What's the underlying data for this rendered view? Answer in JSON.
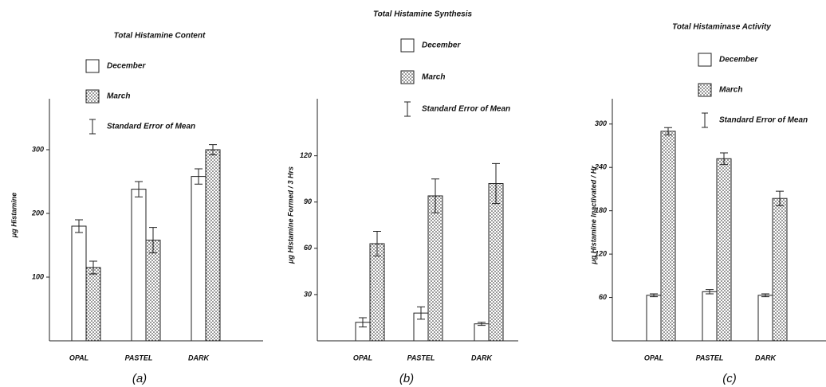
{
  "chart_data": [
    {
      "type": "bar",
      "title": "Total Histamine Content",
      "ylabel": "μg Histamine",
      "caption": "(a)",
      "categories": [
        "OPAL",
        "PASTEL",
        "DARK"
      ],
      "series": [
        {
          "name": "December",
          "color": "#ffffff",
          "values": [
            180,
            238,
            258
          ],
          "errors": [
            10,
            12,
            12
          ]
        },
        {
          "name": "March",
          "color": "#ffffff",
          "hatch": "dots",
          "values": [
            115,
            158,
            300
          ],
          "errors": [
            10,
            20,
            8
          ]
        }
      ],
      "error_label": "Standard Error of Mean",
      "ylim": [
        0,
        380
      ],
      "yticks": [
        100,
        200,
        300
      ]
    },
    {
      "type": "bar",
      "title": "Total Histamine Synthesis",
      "ylabel": "μg Histamine Formed / 3 Hrs",
      "caption": "(b)",
      "categories": [
        "OPAL",
        "PASTEL",
        "DARK"
      ],
      "series": [
        {
          "name": "December",
          "color": "#ffffff",
          "values": [
            12,
            18,
            11
          ],
          "errors": [
            3,
            4,
            1
          ]
        },
        {
          "name": "March",
          "color": "#ffffff",
          "hatch": "dots",
          "values": [
            63,
            94,
            102
          ],
          "errors": [
            8,
            11,
            13
          ]
        }
      ],
      "error_label": "Standard Error of Mean",
      "ylim": [
        0,
        157
      ],
      "yticks": [
        30,
        60,
        90,
        120
      ]
    },
    {
      "type": "bar",
      "title": "Total Histaminase Activity",
      "ylabel": "μg Histamine Inactivated / Hr",
      "caption": "(c)",
      "categories": [
        "OPAL",
        "PASTEL",
        "DARK"
      ],
      "series": [
        {
          "name": "December",
          "color": "#ffffff",
          "values": [
            63,
            68,
            63
          ],
          "errors": [
            2,
            3,
            2
          ]
        },
        {
          "name": "March",
          "color": "#ffffff",
          "hatch": "dots",
          "values": [
            290,
            252,
            197
          ],
          "errors": [
            5,
            8,
            10
          ]
        }
      ],
      "error_label": "Standard Error of Mean",
      "ylim": [
        0,
        335
      ],
      "yticks": [
        60,
        120,
        180,
        240,
        300
      ]
    }
  ]
}
